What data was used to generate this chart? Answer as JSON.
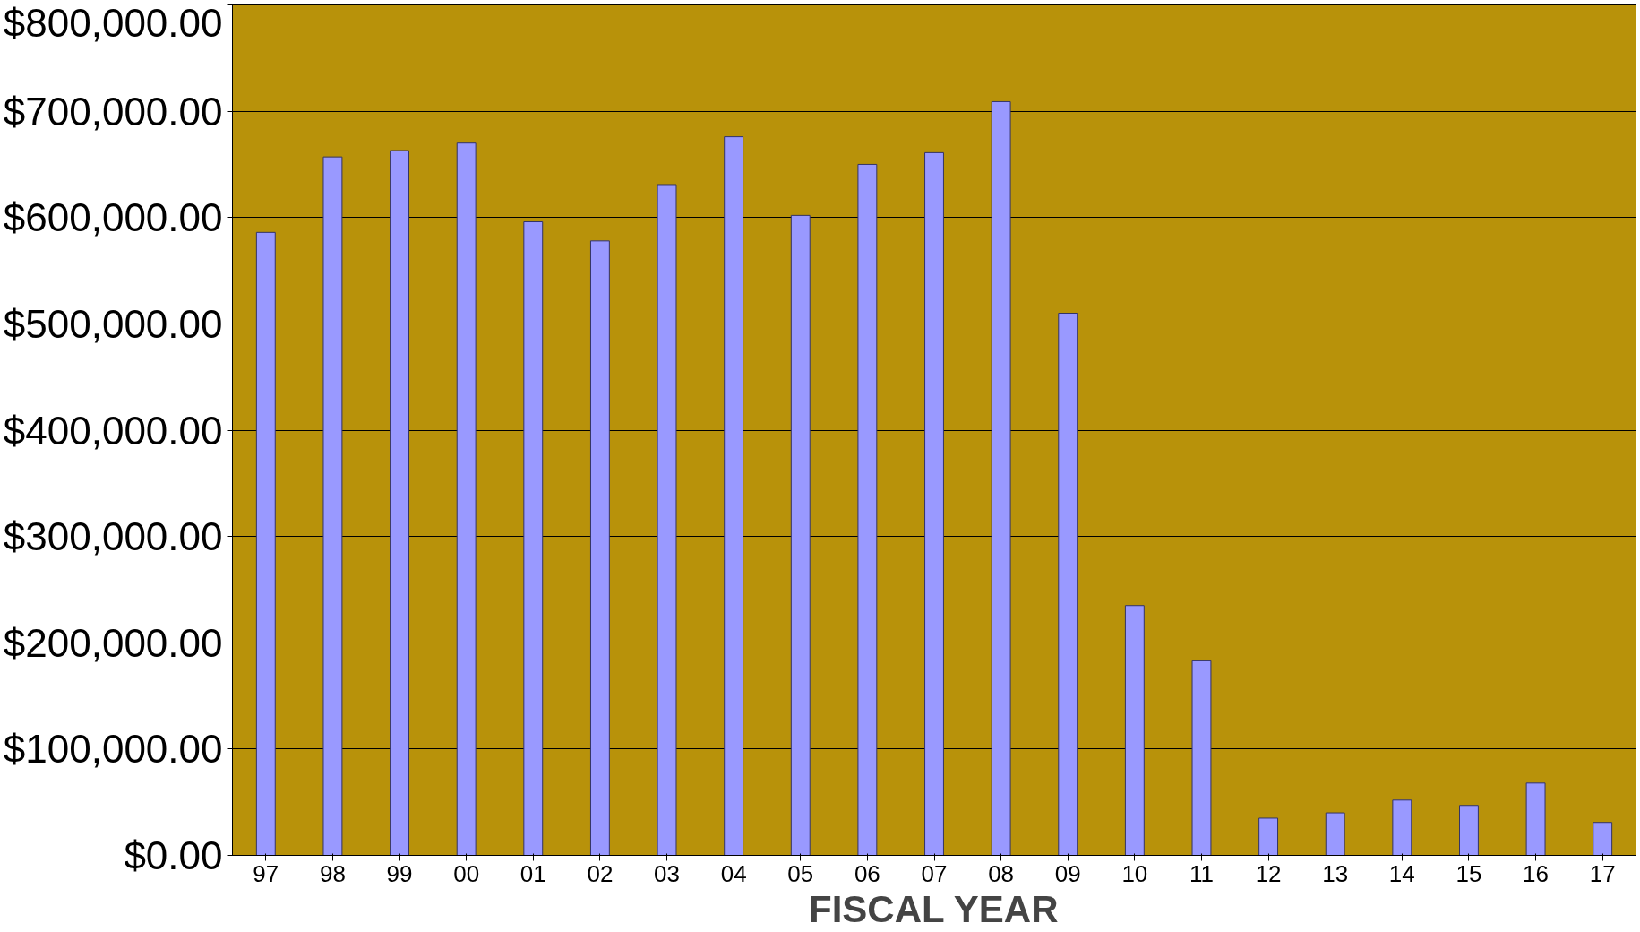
{
  "chart_data": {
    "type": "bar",
    "xlabel": "FISCAL YEAR",
    "categories": [
      "97",
      "98",
      "99",
      "00",
      "01",
      "02",
      "03",
      "04",
      "05",
      "06",
      "07",
      "08",
      "09",
      "10",
      "11",
      "12",
      "13",
      "14",
      "15",
      "16",
      "17"
    ],
    "values": [
      586000,
      657000,
      663000,
      670000,
      596000,
      578000,
      631000,
      676000,
      602000,
      650000,
      661000,
      709000,
      510000,
      235000,
      183000,
      35000,
      40000,
      52000,
      47000,
      68000,
      31000
    ],
    "color": "#9999ff",
    "ylim": [
      0,
      800000
    ],
    "yticks": [
      {
        "value": 0,
        "label": "$0.00"
      },
      {
        "value": 100000,
        "label": "$100,000.00"
      },
      {
        "value": 200000,
        "label": "$200,000.00"
      },
      {
        "value": 300000,
        "label": "$300,000.00"
      },
      {
        "value": 400000,
        "label": "$400,000.00"
      },
      {
        "value": 500000,
        "label": "$500,000.00"
      },
      {
        "value": 600000,
        "label": "$600,000.00"
      },
      {
        "value": 700000,
        "label": "$700,000.00"
      },
      {
        "value": 800000,
        "label": "$800,000.00"
      }
    ],
    "grid": "y"
  }
}
